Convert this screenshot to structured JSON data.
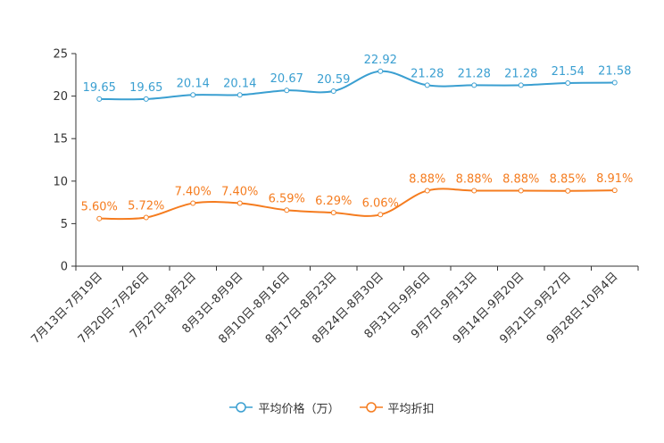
{
  "chart_data": {
    "type": "line",
    "categories": [
      "7月13日-7月19日",
      "7月20日-7月26日",
      "7月27日-8月2日",
      "8月3日-8月9日",
      "8月10日-8月16日",
      "8月17日-8月23日",
      "8月24日-8月30日",
      "8月31日-9月6日",
      "9月7日-9月13日",
      "9月14日-9月20日",
      "9月21日-9月27日",
      "9月28日-10月4日"
    ],
    "series": [
      {
        "name": "平均价格（万）",
        "color": "#3a9fd1",
        "values": [
          19.65,
          19.65,
          20.14,
          20.14,
          20.67,
          20.59,
          22.92,
          21.28,
          21.28,
          21.28,
          21.54,
          21.58
        ],
        "labels": [
          "19.65",
          "19.65",
          "20.14",
          "20.14",
          "20.67",
          "20.59",
          "22.92",
          "21.28",
          "21.28",
          "21.28",
          "21.54",
          "21.58"
        ]
      },
      {
        "name": "平均折扣",
        "color": "#f57c1f",
        "values": [
          5.6,
          5.72,
          7.4,
          7.4,
          6.59,
          6.29,
          6.06,
          8.88,
          8.88,
          8.88,
          8.85,
          8.91
        ],
        "labels": [
          "5.60%",
          "5.72%",
          "7.40%",
          "7.40%",
          "6.59%",
          "6.29%",
          "6.06%",
          "8.88%",
          "8.88%",
          "8.88%",
          "8.85%",
          "8.91%"
        ]
      }
    ],
    "ylim": [
      0,
      25
    ],
    "yticks": [
      0,
      5,
      10,
      15,
      20,
      25
    ],
    "legend_position": "bottom-center",
    "smooth": true
  }
}
